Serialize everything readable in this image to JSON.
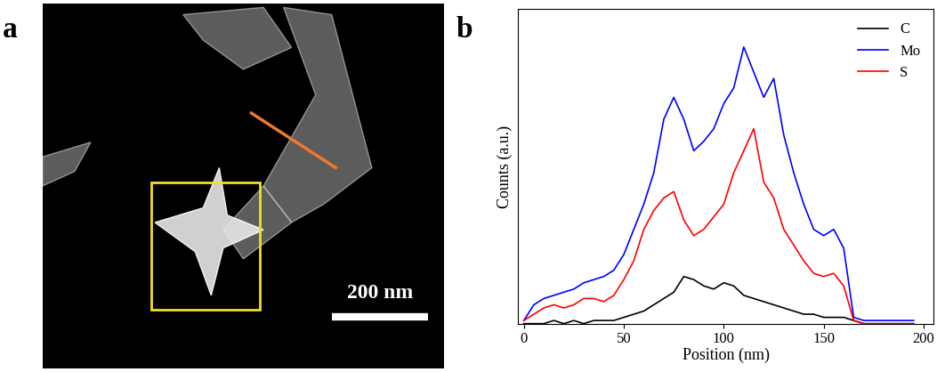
{
  "panel_labels": [
    "a",
    "b"
  ],
  "image": {
    "scale_bar_label": "200 nm"
  },
  "chart_data": {
    "type": "line",
    "x_label": "Position (nm)",
    "y_label": "Counts (a.u.)",
    "x": [
      0,
      5,
      10,
      15,
      20,
      25,
      30,
      35,
      40,
      45,
      50,
      55,
      60,
      65,
      70,
      75,
      80,
      85,
      90,
      95,
      100,
      105,
      110,
      115,
      120,
      125,
      130,
      135,
      140,
      145,
      150,
      155,
      160,
      165,
      170,
      175,
      180,
      185,
      190,
      195
    ],
    "series": [
      {
        "name": "C",
        "color": "#000000",
        "values": [
          0,
          0,
          0,
          1,
          0,
          1,
          0,
          1,
          1,
          1,
          2,
          3,
          4,
          6,
          8,
          10,
          15,
          14,
          12,
          11,
          13,
          12,
          9,
          8,
          7,
          6,
          5,
          4,
          3,
          3,
          2,
          2,
          2,
          1,
          0,
          0,
          0,
          0,
          0,
          0
        ]
      },
      {
        "name": "Mo",
        "color": "#0000ff",
        "values": [
          1,
          6,
          8,
          9,
          10,
          11,
          13,
          14,
          15,
          17,
          22,
          30,
          38,
          48,
          65,
          72,
          65,
          55,
          58,
          62,
          70,
          75,
          88,
          80,
          72,
          78,
          60,
          48,
          38,
          30,
          28,
          30,
          24,
          2,
          1,
          1,
          1,
          1,
          1,
          1
        ]
      },
      {
        "name": "S",
        "color": "#ff0000",
        "values": [
          1,
          3,
          5,
          6,
          5,
          6,
          8,
          8,
          7,
          9,
          14,
          20,
          30,
          36,
          40,
          42,
          33,
          28,
          30,
          34,
          38,
          48,
          55,
          62,
          45,
          40,
          30,
          25,
          20,
          16,
          15,
          16,
          12,
          1,
          0,
          0,
          0,
          0,
          0,
          0
        ]
      }
    ],
    "xlim": [
      -3,
      205
    ],
    "xticks": [
      0,
      50,
      100,
      150,
      200
    ],
    "ylim": [
      0,
      100
    ],
    "legend": "upper right",
    "tick_labels": "x"
  }
}
